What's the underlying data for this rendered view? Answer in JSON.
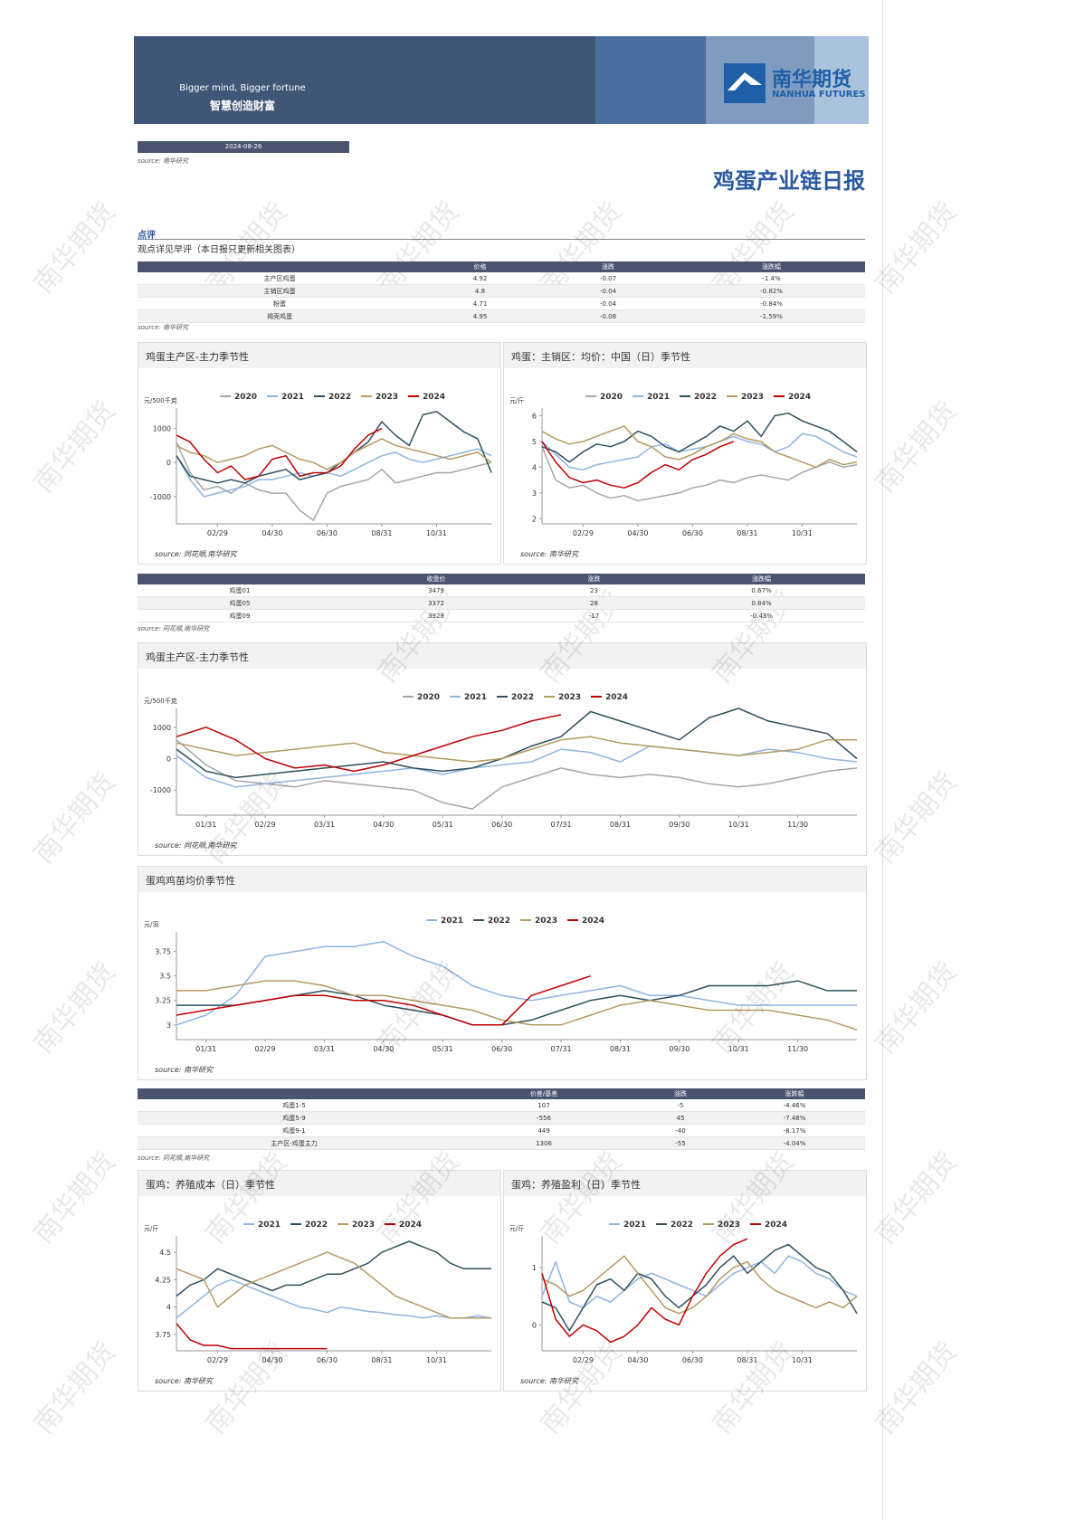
{
  "header": {
    "slogan_en": "Bigger mind, Bigger fortune",
    "slogan_cn": "智慧创造财富",
    "logo_cn": "南华期货",
    "logo_en": "NANHUA FUTURES"
  },
  "report": {
    "date": "2024-08-26",
    "source": "source: 南华研究",
    "title": "鸡蛋产业链日报"
  },
  "comment": {
    "heading": "点评",
    "text": "观点详见早评（本日报只更新相关图表）"
  },
  "watermark": "南华期货",
  "tables": [
    {
      "columns": [
        "价格",
        "涨跌",
        "涨跌幅"
      ],
      "rows": [
        [
          "主产区鸡蛋",
          4.92,
          -0.07,
          "-1.4%"
        ],
        [
          "主销区鸡蛋",
          4.8,
          -0.04,
          "-0.82%"
        ],
        [
          "粉蛋",
          4.71,
          -0.04,
          "-0.84%"
        ],
        [
          "褐壳鸡蛋",
          4.95,
          -0.08,
          "-1.59%"
        ]
      ],
      "source": "source: 南华研究"
    },
    {
      "columns": [
        "收盘价",
        "涨跌",
        "涨跌幅"
      ],
      "rows": [
        [
          "鸡蛋01",
          3479,
          23,
          "0.67%"
        ],
        [
          "鸡蛋05",
          3372,
          28,
          "0.84%"
        ],
        [
          "鸡蛋09",
          3928,
          -17,
          "-0.43%"
        ]
      ],
      "source": "source: 同花顺,南华研究"
    },
    {
      "columns": [
        "价差/基差",
        "涨跌",
        "涨跌幅"
      ],
      "rows": [
        [
          "鸡蛋1-5",
          107,
          -5,
          "-4.46%"
        ],
        [
          "鸡蛋5-9",
          -556,
          45,
          "-7.48%"
        ],
        [
          "鸡蛋9-1",
          449,
          -40,
          "-8.17%"
        ],
        [
          "主产区-鸡蛋主力",
          1306,
          -55,
          "-4.04%"
        ]
      ],
      "source": "source: 同花顺,南华研究"
    }
  ],
  "chart_data": [
    {
      "type": "line",
      "title": "鸡蛋主产区-主力季节性",
      "unit": "元/500千克",
      "source": "source: 同花顺,南华研究",
      "categories": [
        null,
        null,
        null,
        "02/29",
        null,
        null,
        null,
        "04/30",
        null,
        null,
        null,
        "06/30",
        null,
        null,
        null,
        "08/31",
        null,
        null,
        null,
        "10/31",
        null,
        null,
        null,
        null
      ],
      "ylim": [
        -1800,
        1600
      ],
      "yticks": [
        -1000,
        0,
        1000
      ],
      "series": [
        {
          "name": "2020",
          "color": "#a6a6a6",
          "values": [
            600,
            -300,
            -800,
            -700,
            -900,
            -600,
            -800,
            -900,
            -900,
            -1400,
            -1700,
            -900,
            -700,
            -600,
            -500,
            -200,
            -600,
            -500,
            -400,
            -300,
            -300,
            -200,
            -100,
            0
          ]
        },
        {
          "name": "2021",
          "color": "#8eb4e3",
          "values": [
            200,
            -500,
            -1000,
            -900,
            -800,
            -700,
            -500,
            -500,
            -400,
            -300,
            -400,
            -300,
            -400,
            -200,
            0,
            200,
            300,
            100,
            0,
            100,
            200,
            300,
            400,
            200
          ]
        },
        {
          "name": "2022",
          "color": "#2f4f5f",
          "values": [
            200,
            -400,
            -500,
            -600,
            -500,
            -600,
            -400,
            -300,
            -200,
            -500,
            -400,
            -300,
            0,
            300,
            600,
            1200,
            800,
            500,
            1400,
            1500,
            1200,
            900,
            700,
            -300
          ]
        },
        {
          "name": "2023",
          "color": "#b59a60",
          "values": [
            500,
            300,
            200,
            0,
            100,
            200,
            400,
            500,
            300,
            100,
            0,
            -200,
            0,
            300,
            500,
            700,
            500,
            400,
            300,
            200,
            100,
            200,
            300,
            0
          ]
        },
        {
          "name": "2024",
          "color": "#c00000",
          "values": [
            800,
            600,
            100,
            -300,
            -100,
            -500,
            -400,
            100,
            200,
            -400,
            -300,
            -300,
            -100,
            400,
            800,
            1000,
            null,
            null,
            null,
            null,
            null,
            null,
            null,
            null
          ]
        }
      ]
    },
    {
      "type": "line",
      "title": "鸡蛋：主销区：均价：中国（日）季节性",
      "unit": "元/斤",
      "source": "source: 南华研究",
      "categories": [
        null,
        null,
        null,
        "02/29",
        null,
        null,
        null,
        "04/30",
        null,
        null,
        null,
        "06/30",
        null,
        null,
        null,
        "08/31",
        null,
        null,
        null,
        "10/31",
        null,
        null,
        null,
        null
      ],
      "ylim": [
        1.8,
        6.3
      ],
      "yticks": [
        2,
        3,
        4,
        5,
        6
      ],
      "series": [
        {
          "name": "2020",
          "color": "#a6a6a6",
          "values": [
            4.8,
            3.5,
            3.2,
            3.3,
            3.0,
            2.8,
            2.9,
            2.7,
            2.8,
            2.9,
            3.0,
            3.2,
            3.3,
            3.5,
            3.4,
            3.6,
            3.7,
            3.6,
            3.5,
            3.8,
            4.0,
            4.2,
            4.0,
            4.1
          ]
        },
        {
          "name": "2021",
          "color": "#8eb4e3",
          "values": [
            5.0,
            4.5,
            4.0,
            3.9,
            4.1,
            4.2,
            4.3,
            4.4,
            4.8,
            4.9,
            4.6,
            4.7,
            4.8,
            5.0,
            5.2,
            5.0,
            4.9,
            4.6,
            4.8,
            5.3,
            5.2,
            4.9,
            4.6,
            4.4
          ]
        },
        {
          "name": "2022",
          "color": "#2f4f5f",
          "values": [
            4.8,
            4.6,
            4.2,
            4.6,
            4.9,
            4.8,
            5.0,
            5.4,
            5.2,
            4.8,
            4.6,
            4.9,
            5.2,
            5.6,
            5.4,
            5.8,
            5.2,
            6.0,
            6.1,
            5.8,
            5.6,
            5.4,
            5.0,
            4.6
          ]
        },
        {
          "name": "2023",
          "color": "#b59a60",
          "values": [
            5.4,
            5.1,
            4.9,
            5.0,
            5.2,
            5.4,
            5.6,
            5.0,
            4.8,
            4.4,
            4.3,
            4.5,
            4.8,
            5.0,
            5.3,
            5.1,
            5.0,
            4.6,
            4.4,
            4.2,
            4.0,
            4.3,
            4.1,
            4.2
          ]
        },
        {
          "name": "2024",
          "color": "#c00000",
          "values": [
            5.0,
            4.2,
            3.6,
            3.4,
            3.5,
            3.3,
            3.2,
            3.4,
            3.8,
            4.1,
            3.9,
            4.3,
            4.5,
            4.8,
            5.0,
            null,
            null,
            null,
            null,
            null,
            null,
            null,
            null,
            null
          ]
        }
      ]
    },
    {
      "type": "line",
      "title": "鸡蛋主产区-主力季节性",
      "unit": "元/500千克",
      "source": "source: 同花顺,南华研究",
      "categories": [
        null,
        "01/31",
        null,
        "02/29",
        null,
        "03/31",
        null,
        "04/30",
        null,
        "05/31",
        null,
        "06/30",
        null,
        "07/31",
        null,
        "08/31",
        null,
        "09/30",
        null,
        "10/31",
        null,
        "11/30",
        null,
        null
      ],
      "ylim": [
        -1800,
        1600
      ],
      "yticks": [
        -1000,
        0,
        1000
      ],
      "series": [
        {
          "name": "2020",
          "color": "#a6a6a6",
          "values": [
            600,
            -200,
            -700,
            -800,
            -900,
            -700,
            -800,
            -900,
            -1000,
            -1400,
            -1600,
            -900,
            -600,
            -300,
            -500,
            -600,
            -500,
            -600,
            -800,
            -900,
            -800,
            -600,
            -400,
            -300
          ]
        },
        {
          "name": "2021",
          "color": "#8eb4e3",
          "values": [
            100,
            -600,
            -900,
            -800,
            -700,
            -600,
            -500,
            -400,
            -300,
            -500,
            -300,
            -200,
            -100,
            300,
            200,
            -100,
            400,
            300,
            200,
            100,
            300,
            200,
            0,
            -100
          ]
        },
        {
          "name": "2022",
          "color": "#2f4f5f",
          "values": [
            300,
            -400,
            -600,
            -500,
            -400,
            -300,
            -200,
            -100,
            -300,
            -400,
            -300,
            0,
            400,
            700,
            1500,
            1200,
            900,
            600,
            1300,
            1600,
            1200,
            1000,
            800,
            0
          ]
        },
        {
          "name": "2023",
          "color": "#b59a60",
          "values": [
            500,
            300,
            100,
            200,
            300,
            400,
            500,
            200,
            100,
            0,
            -100,
            0,
            300,
            600,
            700,
            500,
            400,
            300,
            200,
            100,
            200,
            300,
            600,
            600
          ]
        },
        {
          "name": "2024",
          "color": "#c00000",
          "values": [
            700,
            1000,
            600,
            0,
            -300,
            -200,
            -400,
            -200,
            100,
            400,
            700,
            900,
            1200,
            1400,
            null,
            null,
            null,
            null,
            null,
            null,
            null,
            null,
            null,
            null
          ]
        }
      ]
    },
    {
      "type": "line",
      "title": "蛋鸡鸡苗均价季节性",
      "unit": "元/羽",
      "source": "source: 南华研究",
      "categories": [
        null,
        "01/31",
        null,
        "02/29",
        null,
        "03/31",
        null,
        "04/30",
        null,
        "05/31",
        null,
        "06/30",
        null,
        "07/31",
        null,
        "08/31",
        null,
        "09/30",
        null,
        "10/31",
        null,
        "11/30",
        null,
        null
      ],
      "ylim": [
        2.85,
        3.95
      ],
      "yticks": [
        3,
        3.25,
        3.5,
        3.75
      ],
      "series": [
        {
          "name": "2021",
          "color": "#8eb4e3",
          "values": [
            3.0,
            3.1,
            3.3,
            3.7,
            3.75,
            3.8,
            3.8,
            3.85,
            3.7,
            3.6,
            3.4,
            3.3,
            3.25,
            3.3,
            3.35,
            3.4,
            3.3,
            3.3,
            3.25,
            3.2,
            3.2,
            3.2,
            3.2,
            3.2
          ]
        },
        {
          "name": "2022",
          "color": "#2f4f5f",
          "values": [
            3.2,
            3.2,
            3.2,
            3.25,
            3.3,
            3.35,
            3.3,
            3.2,
            3.15,
            3.1,
            3.0,
            3.0,
            3.05,
            3.15,
            3.25,
            3.3,
            3.25,
            3.3,
            3.4,
            3.4,
            3.4,
            3.45,
            3.35,
            3.35
          ]
        },
        {
          "name": "2023",
          "color": "#b59a60",
          "values": [
            3.35,
            3.35,
            3.4,
            3.45,
            3.45,
            3.4,
            3.3,
            3.3,
            3.25,
            3.2,
            3.15,
            3.05,
            3.0,
            3.0,
            3.1,
            3.2,
            3.25,
            3.2,
            3.15,
            3.15,
            3.15,
            3.1,
            3.05,
            2.95
          ]
        },
        {
          "name": "2024",
          "color": "#c00000",
          "values": [
            3.1,
            3.15,
            3.2,
            3.25,
            3.3,
            3.3,
            3.25,
            3.25,
            3.2,
            3.1,
            3.0,
            3.0,
            3.3,
            3.4,
            3.5,
            null,
            null,
            null,
            null,
            null,
            null,
            null,
            null,
            null
          ]
        }
      ]
    },
    {
      "type": "line",
      "title": "蛋鸡：养殖成本（日）季节性",
      "unit": "元/斤",
      "source": "source: 南华研究",
      "categories": [
        null,
        null,
        null,
        "02/29",
        null,
        null,
        null,
        "04/30",
        null,
        null,
        null,
        "06/30",
        null,
        null,
        null,
        "08/31",
        null,
        null,
        null,
        "10/31",
        null,
        null,
        null,
        null
      ],
      "ylim": [
        3.6,
        4.65
      ],
      "yticks": [
        3.75,
        4,
        4.25,
        4.5
      ],
      "series": [
        {
          "name": "2021",
          "color": "#8eb4e3",
          "values": [
            3.9,
            4.0,
            4.1,
            4.2,
            4.25,
            4.2,
            4.15,
            4.1,
            4.05,
            4.0,
            3.98,
            3.95,
            4.0,
            3.98,
            3.96,
            3.95,
            3.93,
            3.92,
            3.9,
            3.92,
            3.9,
            3.9,
            3.92,
            3.9
          ]
        },
        {
          "name": "2022",
          "color": "#2f4f5f",
          "values": [
            4.1,
            4.2,
            4.25,
            4.35,
            4.3,
            4.25,
            4.2,
            4.15,
            4.2,
            4.2,
            4.25,
            4.3,
            4.3,
            4.35,
            4.4,
            4.5,
            4.55,
            4.6,
            4.55,
            4.5,
            4.4,
            4.35,
            4.35,
            4.35
          ]
        },
        {
          "name": "2023",
          "color": "#b59a60",
          "values": [
            4.35,
            4.3,
            4.25,
            4.0,
            4.1,
            4.2,
            4.25,
            4.3,
            4.35,
            4.4,
            4.45,
            4.5,
            4.45,
            4.4,
            4.3,
            4.2,
            4.1,
            4.05,
            4.0,
            3.95,
            3.9,
            3.9,
            3.9,
            3.9
          ]
        },
        {
          "name": "2024",
          "color": "#c00000",
          "values": [
            3.85,
            3.7,
            3.65,
            3.65,
            3.62,
            3.62,
            3.62,
            3.62,
            3.62,
            3.62,
            3.62,
            3.62,
            null,
            null,
            null,
            null,
            null,
            null,
            null,
            null,
            null,
            null,
            null,
            null
          ]
        }
      ]
    },
    {
      "type": "line",
      "title": "蛋鸡：养殖盈利（日）季节性",
      "unit": "元/斤",
      "source": "source: 南华研究",
      "categories": [
        null,
        null,
        null,
        "02/29",
        null,
        null,
        null,
        "04/30",
        null,
        null,
        null,
        "06/30",
        null,
        null,
        null,
        "08/31",
        null,
        null,
        null,
        "10/31",
        null,
        null,
        null,
        null
      ],
      "ylim": [
        -0.45,
        1.55
      ],
      "yticks": [
        0,
        1
      ],
      "series": [
        {
          "name": "2021",
          "color": "#8eb4e3",
          "values": [
            0.5,
            1.1,
            0.4,
            0.3,
            0.5,
            0.4,
            0.6,
            0.8,
            0.9,
            0.8,
            0.7,
            0.6,
            0.5,
            0.7,
            0.9,
            1.0,
            1.1,
            0.9,
            1.2,
            1.1,
            0.9,
            0.8,
            0.6,
            0.5
          ]
        },
        {
          "name": "2022",
          "color": "#2f4f5f",
          "values": [
            0.4,
            0.3,
            -0.1,
            0.3,
            0.7,
            0.8,
            0.6,
            0.9,
            0.8,
            0.5,
            0.3,
            0.5,
            0.7,
            1.0,
            1.2,
            0.9,
            1.1,
            1.3,
            1.4,
            1.2,
            1.0,
            0.9,
            0.6,
            0.2
          ]
        },
        {
          "name": "2023",
          "color": "#b59a60",
          "values": [
            0.8,
            0.7,
            0.5,
            0.6,
            0.8,
            1.0,
            1.2,
            0.9,
            0.6,
            0.3,
            0.2,
            0.3,
            0.5,
            0.8,
            1.0,
            1.1,
            0.8,
            0.6,
            0.5,
            0.4,
            0.3,
            0.4,
            0.3,
            0.5
          ]
        },
        {
          "name": "2024",
          "color": "#c00000",
          "values": [
            0.9,
            0.1,
            -0.2,
            0.0,
            -0.1,
            -0.3,
            -0.2,
            0.0,
            0.3,
            0.1,
            0.0,
            0.5,
            0.9,
            1.2,
            1.4,
            1.5,
            null,
            null,
            null,
            null,
            null,
            null,
            null,
            null
          ]
        }
      ]
    }
  ]
}
